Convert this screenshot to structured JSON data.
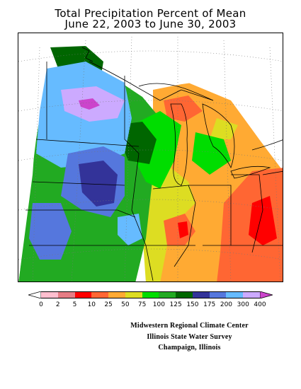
{
  "title": {
    "line1": "Total Precipitation Percent of Mean",
    "line2": "June 22, 2003 to June 30, 2003"
  },
  "legend": {
    "bins": [
      {
        "color": "#ffffff"
      },
      {
        "color": "#ffbfcf"
      },
      {
        "color": "#e67d85"
      },
      {
        "color": "#ff0000"
      },
      {
        "color": "#ff6633"
      },
      {
        "color": "#ffaa33"
      },
      {
        "color": "#dddd22"
      },
      {
        "color": "#00dd00"
      },
      {
        "color": "#22aa22"
      },
      {
        "color": "#006600"
      },
      {
        "color": "#333399"
      },
      {
        "color": "#5577dd"
      },
      {
        "color": "#66bbff"
      },
      {
        "color": "#ccaaff"
      },
      {
        "color": "#cc44cc"
      }
    ],
    "tick_labels": [
      "0",
      "2",
      "5",
      "10",
      "25",
      "50",
      "75",
      "100",
      "125",
      "150",
      "175",
      "200",
      "300",
      "400"
    ]
  },
  "credits": {
    "line1": "Midwestern Regional Climate Center",
    "line2": "Illinois State Water Survey",
    "line3": "Champaign, Illinois"
  },
  "map_colors": {
    "light_blue": "#66bbff",
    "mid_blue": "#5577dd",
    "dark_blue": "#333399",
    "lavender": "#ccaaff",
    "magenta": "#cc44cc",
    "dark_green": "#006600",
    "green": "#22aa22",
    "bright_green": "#00dd00",
    "yellow": "#dddd22",
    "orange": "#ffaa33",
    "dark_orange": "#ff6633",
    "red": "#ff0000"
  }
}
